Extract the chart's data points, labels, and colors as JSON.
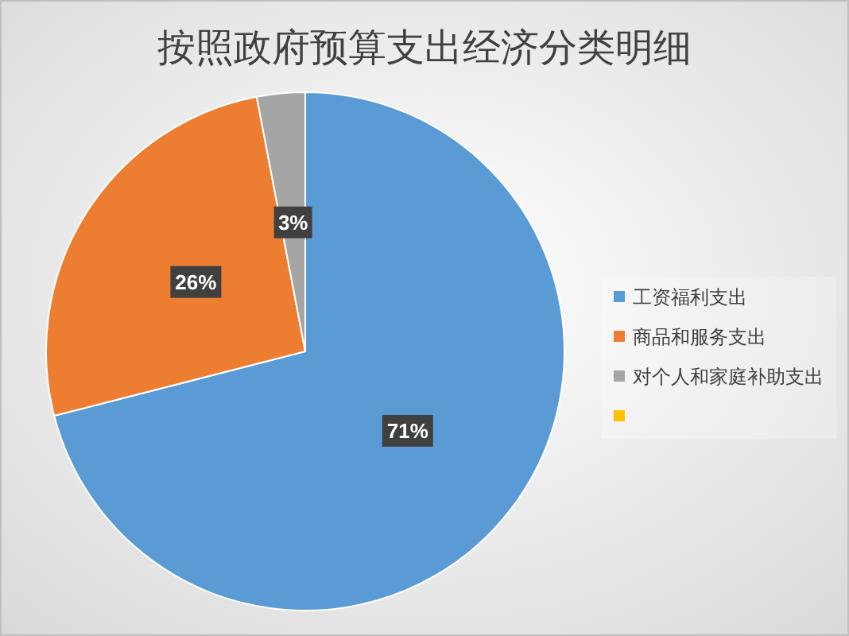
{
  "chart_data": {
    "type": "pie",
    "title": "按照政府预算支出经济分类明细",
    "categories": [
      "工资福利支出",
      "商品和服务支出",
      "对个人和家庭补助支出",
      null
    ],
    "values": [
      71,
      26,
      3,
      0
    ],
    "colors": [
      "#5b9bd5",
      "#ed7d31",
      "#a5a5a5",
      "#ffc000"
    ],
    "value_labels": [
      "71%",
      "26%",
      "3%",
      null
    ],
    "legend": "right"
  }
}
